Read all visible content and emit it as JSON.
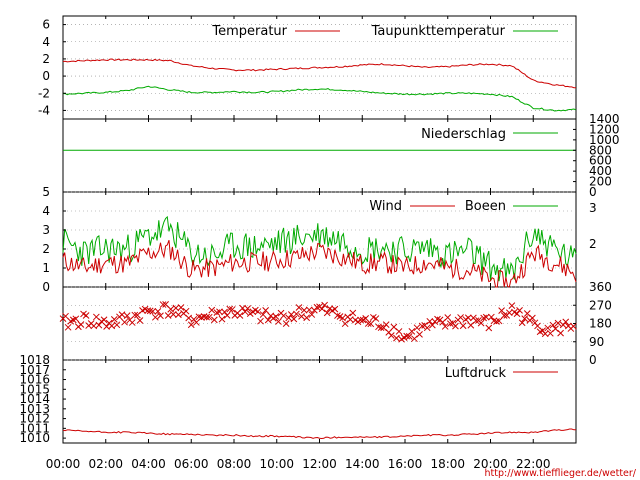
{
  "source_url": "http://www.tiefflieger.de/wetter/",
  "x_tick_labels": [
    "00:00",
    "02:00",
    "04:00",
    "06:00",
    "08:00",
    "10:00",
    "12:00",
    "14:00",
    "16:00",
    "18:00",
    "20:00",
    "22:00"
  ],
  "colors": {
    "red": "#cc0000",
    "green": "#00aa00",
    "grid": "#888888"
  },
  "chart_data": [
    {
      "type": "line",
      "title": "",
      "xlabel": "",
      "ylabel": "",
      "x": [
        0,
        1,
        2,
        3,
        4,
        5,
        6,
        7,
        8,
        9,
        10,
        11,
        12,
        13,
        14,
        15,
        16,
        17,
        18,
        19,
        20,
        21,
        22,
        23,
        24
      ],
      "series": [
        {
          "name": "Temperatur",
          "color": "#cc0000",
          "values": [
            1.7,
            1.8,
            1.9,
            1.9,
            1.9,
            1.8,
            1.2,
            0.9,
            0.7,
            0.7,
            0.8,
            0.9,
            1.0,
            1.1,
            1.3,
            1.4,
            1.2,
            1.0,
            1.1,
            1.3,
            1.4,
            1.2,
            -0.5,
            -1.0,
            -1.3
          ]
        },
        {
          "name": "Taupunkttemperatur",
          "color": "#00aa00",
          "values": [
            -2.1,
            -2.0,
            -1.9,
            -1.7,
            -1.2,
            -1.6,
            -1.9,
            -1.9,
            -1.8,
            -1.9,
            -1.8,
            -1.6,
            -1.5,
            -1.6,
            -1.8,
            -2.0,
            -2.1,
            -2.1,
            -2.0,
            -2.0,
            -2.1,
            -2.4,
            -3.7,
            -4.0,
            -3.9
          ]
        }
      ],
      "y_ticks": [
        "6",
        "4",
        "2",
        "0",
        "-2",
        "-4"
      ],
      "ylim": [
        -5,
        7
      ],
      "grid": true,
      "legend_position": "top-right"
    },
    {
      "type": "line",
      "title": "",
      "x": [
        0,
        24
      ],
      "series": [
        {
          "name": "Niederschlag",
          "color": "#00aa00",
          "values": [
            800,
            800
          ]
        }
      ],
      "y2_ticks": [
        "1400",
        "1200",
        "1000",
        "800",
        "600",
        "400",
        "200",
        "0"
      ],
      "y2lim": [
        0,
        1400
      ],
      "legend_position": "top-right"
    },
    {
      "type": "line",
      "title": "",
      "x": [
        0,
        1,
        2,
        3,
        4,
        5,
        6,
        7,
        8,
        9,
        10,
        11,
        12,
        13,
        14,
        15,
        16,
        17,
        18,
        19,
        20,
        21,
        22,
        23,
        24
      ],
      "series": [
        {
          "name": "Wind",
          "color": "#cc0000",
          "values": [
            1.4,
            1.0,
            1.3,
            1.2,
            1.8,
            2.0,
            0.9,
            1.0,
            1.3,
            1.3,
            1.4,
            1.6,
            1.9,
            1.6,
            1.2,
            1.3,
            1.0,
            1.3,
            1.0,
            0.9,
            0.4,
            0.2,
            1.8,
            1.3,
            0.7
          ]
        },
        {
          "name": "Boeen",
          "color": "#00aa00",
          "values": [
            2.4,
            1.8,
            2.0,
            2.0,
            2.7,
            3.1,
            1.8,
            1.6,
            2.2,
            2.1,
            2.3,
            2.6,
            2.8,
            2.5,
            2.0,
            2.1,
            1.9,
            2.1,
            1.7,
            1.9,
            1.1,
            0.6,
            2.9,
            2.0,
            1.3
          ]
        }
      ],
      "y_ticks": [
        "5",
        "4",
        "3",
        "2",
        "1",
        "0"
      ],
      "ylim": [
        0,
        5
      ],
      "y2_ticks": [
        "3",
        "2"
      ],
      "grid": true,
      "legend_position": "top-right"
    },
    {
      "type": "scatter",
      "title": "",
      "description_note": "wind direction in degrees",
      "x": [
        0,
        1,
        2,
        3,
        4,
        5,
        6,
        7,
        8,
        9,
        10,
        11,
        12,
        13,
        14,
        15,
        16,
        17,
        18,
        19,
        20,
        21,
        22,
        23,
        24
      ],
      "values": [
        180,
        200,
        180,
        200,
        240,
        250,
        200,
        220,
        240,
        220,
        200,
        230,
        250,
        220,
        190,
        180,
        110,
        160,
        180,
        200,
        180,
        250,
        180,
        150,
        180
      ],
      "color": "#cc0000",
      "y2_ticks": [
        "360",
        "270",
        "180",
        "90",
        "0"
      ],
      "y2lim": [
        0,
        360
      ],
      "grid": true
    },
    {
      "type": "line",
      "title": "",
      "x": [
        0,
        1,
        2,
        3,
        4,
        5,
        6,
        7,
        8,
        9,
        10,
        11,
        12,
        13,
        14,
        15,
        16,
        17,
        18,
        19,
        20,
        21,
        22,
        23,
        24
      ],
      "series": [
        {
          "name": "Luftdruck",
          "color": "#cc0000",
          "values": [
            1010.8,
            1010.7,
            1010.6,
            1010.6,
            1010.5,
            1010.4,
            1010.4,
            1010.3,
            1010.3,
            1010.2,
            1010.2,
            1010.1,
            1010.0,
            1010.1,
            1010.1,
            1010.1,
            1010.2,
            1010.3,
            1010.3,
            1010.4,
            1010.5,
            1010.6,
            1010.6,
            1010.8,
            1010.9
          ]
        }
      ],
      "y_ticks": [
        "1018",
        "1017",
        "1016",
        "1015",
        "1014",
        "1013",
        "1012",
        "1011",
        "1010"
      ],
      "ylim": [
        1009.5,
        1018
      ],
      "legend_position": "top-right"
    }
  ]
}
